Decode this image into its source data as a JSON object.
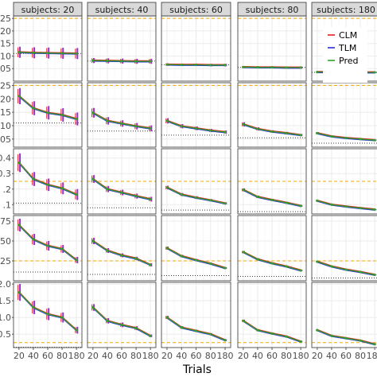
{
  "chart_data": {
    "type": "line",
    "xlabel": "Trials",
    "x_ticks": [
      20,
      40,
      60,
      80,
      180
    ],
    "facet_columns": [
      "subjects: 20",
      "subjects: 40",
      "subjects: 60",
      "subjects: 80",
      "subjects: 180"
    ],
    "legend": {
      "placement": "top-right",
      "entries": [
        {
          "name": "CLM",
          "color": "#e41a1c"
        },
        {
          "name": "TLM",
          "color": "#2b2bd6"
        },
        {
          "name": "Pred",
          "color": "#31a02c"
        }
      ]
    },
    "reference_lines": {
      "upper": {
        "color": "#f0a800",
        "style": "dashed"
      },
      "lower": {
        "color": "#404040",
        "style": "dotted"
      }
    },
    "rows": [
      {
        "ylim": [
          0.0,
          0.26
        ],
        "y_tick_values": [
          0.05,
          0.1,
          0.15,
          0.2,
          0.25
        ],
        "y_tick_labels": [
          "05",
          "10",
          "15",
          "20",
          "25"
        ],
        "upper_ref": 0.25,
        "lower_ref": [
          0.11,
          0.08,
          0.065,
          0.055,
          0.035
        ],
        "panels": [
          {
            "y": [
              0.115,
              0.113,
              0.112,
              0.111,
              0.11
            ],
            "err": [
              0.022,
              0.022,
              0.022,
              0.022,
              0.022
            ]
          },
          {
            "y": [
              0.082,
              0.081,
              0.08,
              0.079,
              0.079
            ],
            "err": [
              0.01,
              0.01,
              0.01,
              0.01,
              0.01
            ]
          },
          {
            "y": [
              0.066,
              0.065,
              0.065,
              0.064,
              0.064
            ],
            "err": [
              0.005,
              0.005,
              0.005,
              0.005,
              0.005
            ]
          },
          {
            "y": [
              0.056,
              0.055,
              0.055,
              0.054,
              0.054
            ],
            "err": [
              0.004,
              0.004,
              0.004,
              0.004,
              0.004
            ]
          },
          {
            "y": [
              0.036,
              0.036,
              0.035,
              0.035,
              0.035
            ],
            "err": [
              0.002,
              0.002,
              0.002,
              0.002,
              0.002
            ]
          }
        ]
      },
      {
        "ylim": [
          0.02,
          0.26
        ],
        "y_tick_values": [
          0.05,
          0.1,
          0.15,
          0.2,
          0.25
        ],
        "y_tick_labels": [
          "05",
          "10",
          "15",
          "20",
          "25"
        ],
        "upper_ref": 0.25,
        "lower_ref": [
          0.11,
          0.08,
          0.065,
          0.055,
          0.035
        ],
        "panels": [
          {
            "y": [
              0.21,
              0.165,
              0.148,
              0.14,
              0.125
            ],
            "err": [
              0.03,
              0.026,
              0.025,
              0.025,
              0.024
            ]
          },
          {
            "y": [
              0.148,
              0.118,
              0.108,
              0.098,
              0.09
            ],
            "err": [
              0.018,
              0.014,
              0.012,
              0.012,
              0.011
            ]
          },
          {
            "y": [
              0.118,
              0.098,
              0.09,
              0.082,
              0.076
            ],
            "err": [
              0.01,
              0.008,
              0.007,
              0.006,
              0.006
            ]
          },
          {
            "y": [
              0.105,
              0.088,
              0.078,
              0.072,
              0.065
            ],
            "err": [
              0.008,
              0.006,
              0.005,
              0.005,
              0.004
            ]
          },
          {
            "y": [
              0.072,
              0.06,
              0.054,
              0.05,
              0.046
            ],
            "err": [
              0.004,
              0.003,
              0.003,
              0.002,
              0.002
            ]
          }
        ]
      },
      {
        "ylim": [
          0.04,
          0.46
        ],
        "y_tick_values": [
          0.1,
          0.2,
          0.3,
          0.4
        ],
        "y_tick_labels": [
          ".1",
          ".2",
          "0.3",
          "0.4"
        ],
        "upper_ref": 0.25,
        "lower_ref": [
          0.11,
          0.08,
          0.065,
          0.055,
          0.035
        ],
        "panels": [
          {
            "y": [
              0.37,
              0.265,
              0.228,
              0.205,
              0.165
            ],
            "err": [
              0.06,
              0.045,
              0.04,
              0.038,
              0.035
            ]
          },
          {
            "y": [
              0.265,
              0.2,
              0.178,
              0.155,
              0.135
            ],
            "err": [
              0.025,
              0.02,
              0.018,
              0.016,
              0.015
            ]
          },
          {
            "y": [
              0.21,
              0.165,
              0.145,
              0.128,
              0.108
            ],
            "err": [
              0.012,
              0.01,
              0.009,
              0.008,
              0.007
            ]
          },
          {
            "y": [
              0.195,
              0.15,
              0.13,
              0.112,
              0.092
            ],
            "err": [
              0.01,
              0.008,
              0.007,
              0.006,
              0.005
            ]
          },
          {
            "y": [
              0.125,
              0.1,
              0.088,
              0.078,
              0.068
            ],
            "err": [
              0.005,
              0.004,
              0.004,
              0.003,
              0.003
            ]
          }
        ]
      },
      {
        "ylim": [
          0.0,
          0.82
        ],
        "y_tick_values": [
          0.25,
          0.5,
          0.75
        ],
        "y_tick_labels": [
          ".25",
          ".50",
          ".75"
        ],
        "upper_ref": 0.25,
        "lower_ref": [
          0.11,
          0.08,
          0.065,
          0.055,
          0.035
        ],
        "panels": [
          {
            "y": [
              0.7,
              0.52,
              0.44,
              0.4,
              0.26
            ],
            "err": [
              0.08,
              0.07,
              0.06,
              0.05,
              0.04
            ]
          },
          {
            "y": [
              0.5,
              0.38,
              0.32,
              0.28,
              0.2
            ],
            "err": [
              0.04,
              0.03,
              0.025,
              0.022,
              0.02
            ]
          },
          {
            "y": [
              0.41,
              0.31,
              0.26,
              0.215,
              0.16
            ],
            "err": [
              0.02,
              0.016,
              0.014,
              0.012,
              0.01
            ]
          },
          {
            "y": [
              0.36,
              0.27,
              0.22,
              0.18,
              0.13
            ],
            "err": [
              0.014,
              0.012,
              0.01,
              0.009,
              0.008
            ]
          },
          {
            "y": [
              0.24,
              0.18,
              0.14,
              0.11,
              0.075
            ],
            "err": [
              0.007,
              0.006,
              0.005,
              0.004,
              0.004
            ]
          }
        ]
      },
      {
        "ylim": [
          0.1,
          2.05
        ],
        "y_tick_values": [
          0.5,
          1.0,
          1.5,
          2.0
        ],
        "y_tick_labels": [
          "0.5",
          "1.0",
          "1.5",
          "2.0"
        ],
        "upper_ref": 0.25,
        "lower_ref": [
          0.11,
          0.08,
          0.065,
          0.055,
          0.035
        ],
        "panels": [
          {
            "y": [
              1.75,
              1.3,
              1.1,
              1.0,
              0.62
            ],
            "err": [
              0.25,
              0.2,
              0.18,
              0.15,
              0.1
            ]
          },
          {
            "y": [
              1.3,
              0.9,
              0.78,
              0.68,
              0.45
            ],
            "err": [
              0.1,
              0.08,
              0.07,
              0.06,
              0.04
            ]
          },
          {
            "y": [
              1.0,
              0.7,
              0.6,
              0.5,
              0.32
            ],
            "err": [
              0.05,
              0.04,
              0.035,
              0.03,
              0.025
            ]
          },
          {
            "y": [
              0.9,
              0.62,
              0.52,
              0.43,
              0.28
            ],
            "err": [
              0.035,
              0.03,
              0.025,
              0.02,
              0.018
            ]
          },
          {
            "y": [
              0.62,
              0.45,
              0.38,
              0.31,
              0.2
            ],
            "err": [
              0.015,
              0.012,
              0.01,
              0.009,
              0.008
            ]
          }
        ]
      }
    ]
  }
}
